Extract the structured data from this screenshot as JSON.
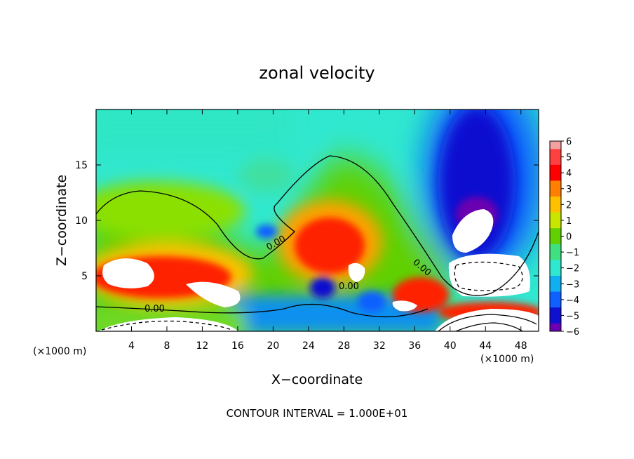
{
  "chart_data": {
    "type": "heatmap",
    "title": "zonal velocity",
    "xlabel": "X−coordinate",
    "ylabel": "Z−coordinate",
    "x_unit_left": "(×1000 m)",
    "x_unit_right": "(×1000 m)",
    "footer": "CONTOUR INTERVAL = 1.000E+01",
    "xlim": [
      0,
      50
    ],
    "ylim": [
      0,
      20
    ],
    "x_ticks": [
      4,
      8,
      12,
      16,
      20,
      24,
      28,
      32,
      36,
      40,
      44,
      48
    ],
    "y_ticks": [
      5,
      10,
      15
    ],
    "colorbar": {
      "labels": [
        "6",
        "5",
        "4",
        "3",
        "2",
        "1",
        "0",
        "−1",
        "−2",
        "−3",
        "−4",
        "−5",
        "−6"
      ],
      "colors": [
        "#f4a0a0",
        "#ff4040",
        "#ff0000",
        "#ff8000",
        "#ffc000",
        "#c8e600",
        "#60d000",
        "#40e080",
        "#30e8d0",
        "#10b0f0",
        "#1060ff",
        "#1010d0",
        "#6a00b0"
      ]
    },
    "contour_labels": [
      "0.00",
      "0.00",
      "0.00",
      "0.00"
    ],
    "regions": [
      {
        "name": "upper-sky",
        "value": -1.5
      },
      {
        "name": "mid-green-band",
        "value": 0.5
      },
      {
        "name": "left-warm-layer",
        "value": 4
      },
      {
        "name": "center-warm-dome",
        "value": 4
      },
      {
        "name": "right-cold-column",
        "value": -5
      },
      {
        "name": "near-surface-mixed",
        "value": -3
      }
    ]
  }
}
